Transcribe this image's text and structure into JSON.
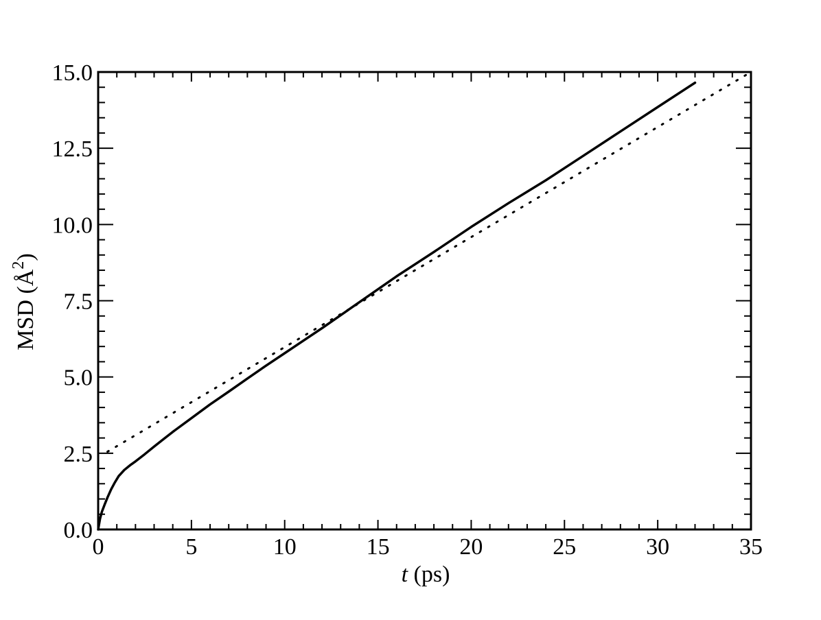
{
  "chart_data": {
    "type": "line",
    "xlabel_italic": "t",
    "xlabel_rest": " (ps)",
    "ylabel_main": "MSD (",
    "ylabel_unit": "Å",
    "ylabel_sup": "2",
    "ylabel_close": ")",
    "xlim": [
      0,
      35
    ],
    "ylim": [
      0,
      15
    ],
    "x_ticks": [
      "0",
      "5",
      "10",
      "15",
      "20",
      "25",
      "30",
      "35"
    ],
    "y_ticks": [
      "0.0",
      "2.5",
      "5.0",
      "7.5",
      "10.0",
      "12.5",
      "15.0"
    ],
    "grid": false,
    "series": [
      {
        "style": "solid",
        "color": "#000000",
        "x": [
          0,
          0.1,
          0.2,
          0.35,
          0.5,
          0.7,
          0.9,
          1.1,
          1.4,
          1.7,
          2.0,
          2.5,
          3.0,
          3.5,
          4.0,
          5.0,
          6.0,
          7.0,
          8.0,
          9.0,
          10.0,
          12.0,
          14.0,
          16.0,
          18.0,
          20.0,
          22.0,
          24.0,
          26.0,
          28.0,
          30.0,
          32.0
        ],
        "y": [
          0,
          0.35,
          0.58,
          0.82,
          1.05,
          1.32,
          1.55,
          1.75,
          1.95,
          2.1,
          2.23,
          2.47,
          2.72,
          2.96,
          3.2,
          3.65,
          4.1,
          4.52,
          4.95,
          5.37,
          5.78,
          6.6,
          7.45,
          8.3,
          9.1,
          9.92,
          10.7,
          11.45,
          12.25,
          13.05,
          13.85,
          14.65
        ]
      },
      {
        "style": "dotted",
        "color": "#000000",
        "x": [
          0.5,
          35
        ],
        "y": [
          2.55,
          15.0
        ]
      }
    ]
  }
}
